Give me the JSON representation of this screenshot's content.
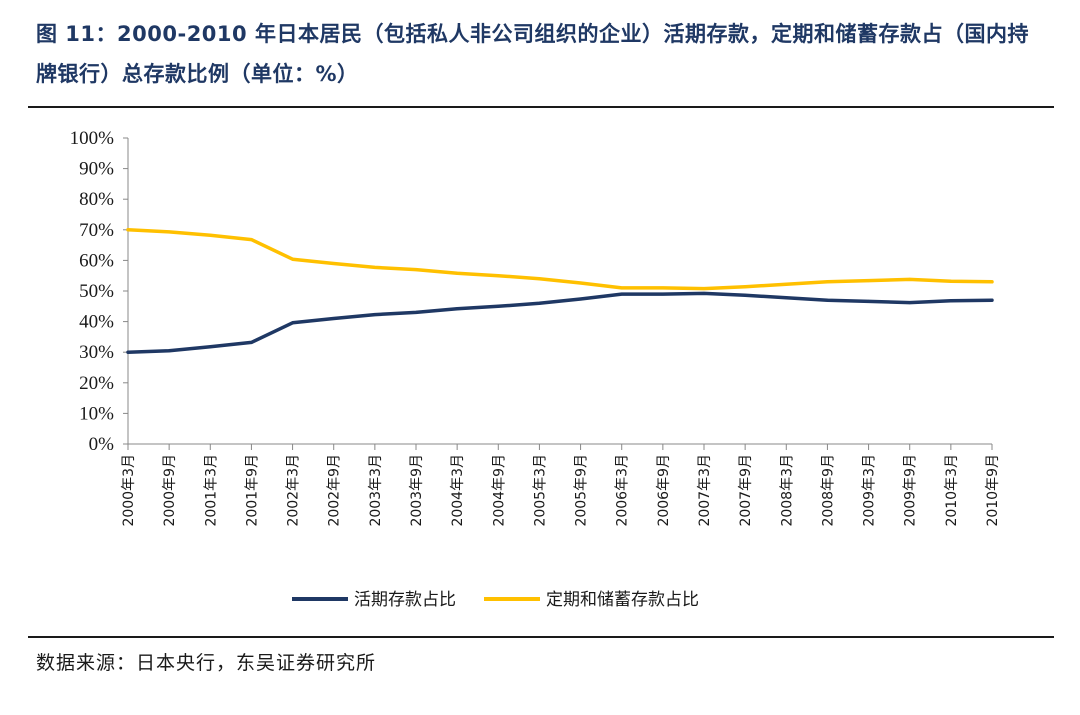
{
  "title": "图 11：2000-2010 年日本居民（包括私人非公司组织的企业）活期存款，定期和储蓄存款占（国内持牌银行）总存款比例（单位：%）",
  "source": "数据来源：日本央行，东吴证券研究所",
  "chart_data": {
    "type": "line",
    "categories": [
      "2000年3月",
      "2000年9月",
      "2001年3月",
      "2001年9月",
      "2002年3月",
      "2002年9月",
      "2003年3月",
      "2003年9月",
      "2004年3月",
      "2004年9月",
      "2005年3月",
      "2005年9月",
      "2006年3月",
      "2006年9月",
      "2007年3月",
      "2007年9月",
      "2008年3月",
      "2008年9月",
      "2009年3月",
      "2009年9月",
      "2010年3月",
      "2010年9月"
    ],
    "ylim": [
      0,
      100
    ],
    "yticks": [
      "0%",
      "10%",
      "20%",
      "30%",
      "40%",
      "50%",
      "60%",
      "70%",
      "80%",
      "90%",
      "100%"
    ],
    "series": [
      {
        "name": "活期存款占比",
        "color": "#1f3864",
        "values": [
          30,
          30.5,
          31.8,
          33.2,
          39.6,
          41,
          42.3,
          43,
          44.2,
          45,
          46,
          47.4,
          49,
          49,
          49.2,
          48.6,
          47.8,
          47,
          46.6,
          46.2,
          46.8,
          47
        ]
      },
      {
        "name": "定期和储蓄存款占比",
        "color": "#ffc000",
        "values": [
          70,
          69.3,
          68.2,
          66.8,
          60.4,
          59,
          57.7,
          57,
          55.8,
          55,
          54,
          52.6,
          51,
          51,
          50.8,
          51.4,
          52.2,
          53,
          53.4,
          53.8,
          53.2,
          53
        ]
      }
    ],
    "legend_position": "bottom-center",
    "grid": false
  }
}
